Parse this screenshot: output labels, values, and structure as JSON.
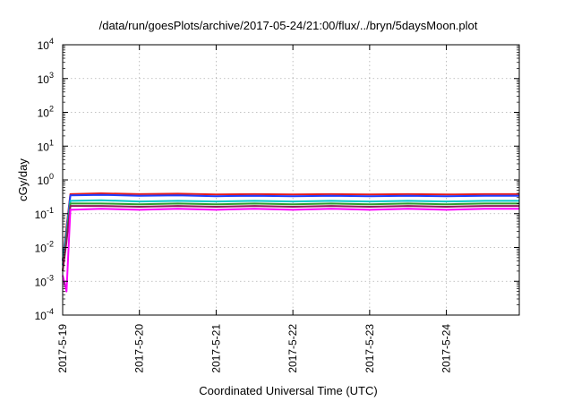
{
  "chart_data": {
    "type": "line",
    "title": "/data/run/goesPlots/archive/2017-05-24/21:00/flux/../bryn/5daysMoon.plot",
    "xlabel": "Coordinated Universal Time (UTC)",
    "ylabel": "cGy/day",
    "yscale": "log",
    "ylim": [
      0.0001,
      10000
    ],
    "xlim": [
      0,
      5.95
    ],
    "x_ticks": [
      {
        "x": 0,
        "label": "2017-5-19"
      },
      {
        "x": 1,
        "label": "2017-5-20"
      },
      {
        "x": 2,
        "label": "2017-5-21"
      },
      {
        "x": 3,
        "label": "2017-5-22"
      },
      {
        "x": 4,
        "label": "2017-5-23"
      },
      {
        "x": 5,
        "label": "2017-5-24"
      }
    ],
    "y_ticks": [
      {
        "value": 0.0001,
        "base": "10",
        "exp": "-4"
      },
      {
        "value": 0.001,
        "base": "10",
        "exp": "-3"
      },
      {
        "value": 0.01,
        "base": "10",
        "exp": "-2"
      },
      {
        "value": 0.1,
        "base": "10",
        "exp": "-1"
      },
      {
        "value": 1,
        "base": "10",
        "exp": "0"
      },
      {
        "value": 10,
        "base": "10",
        "exp": "1"
      },
      {
        "value": 100,
        "base": "10",
        "exp": "2"
      },
      {
        "value": 1000,
        "base": "10",
        "exp": "3"
      },
      {
        "value": 10000,
        "base": "10",
        "exp": "4"
      }
    ],
    "grid": true,
    "series": [
      {
        "color": "#e41a1c",
        "values": [
          [
            0.0,
            0.004
          ],
          [
            0.05,
            0.04
          ],
          [
            0.1,
            0.38
          ],
          [
            0.5,
            0.4
          ],
          [
            1.0,
            0.38
          ],
          [
            1.5,
            0.39
          ],
          [
            2.0,
            0.37
          ],
          [
            2.5,
            0.38
          ],
          [
            3.0,
            0.37
          ],
          [
            3.5,
            0.38
          ],
          [
            4.0,
            0.37
          ],
          [
            4.5,
            0.38
          ],
          [
            5.0,
            0.37
          ],
          [
            5.5,
            0.38
          ],
          [
            5.95,
            0.38
          ]
        ]
      },
      {
        "color": "#1f3fff",
        "values": [
          [
            0.0,
            0.004
          ],
          [
            0.05,
            0.03
          ],
          [
            0.1,
            0.35
          ],
          [
            0.5,
            0.36
          ],
          [
            1.0,
            0.34
          ],
          [
            1.5,
            0.35
          ],
          [
            2.0,
            0.33
          ],
          [
            2.5,
            0.34
          ],
          [
            3.0,
            0.33
          ],
          [
            3.5,
            0.34
          ],
          [
            4.0,
            0.33
          ],
          [
            4.5,
            0.34
          ],
          [
            5.0,
            0.33
          ],
          [
            5.5,
            0.34
          ],
          [
            5.95,
            0.34
          ]
        ]
      },
      {
        "color": "#00c8c8",
        "values": [
          [
            0.0,
            0.003
          ],
          [
            0.05,
            0.025
          ],
          [
            0.1,
            0.24
          ],
          [
            0.5,
            0.25
          ],
          [
            1.0,
            0.23
          ],
          [
            1.5,
            0.24
          ],
          [
            2.0,
            0.23
          ],
          [
            2.5,
            0.24
          ],
          [
            3.0,
            0.23
          ],
          [
            3.5,
            0.24
          ],
          [
            4.0,
            0.23
          ],
          [
            4.5,
            0.24
          ],
          [
            5.0,
            0.23
          ],
          [
            5.5,
            0.24
          ],
          [
            5.95,
            0.24
          ]
        ]
      },
      {
        "color": "#2ca02c",
        "values": [
          [
            0.0,
            0.002
          ],
          [
            0.05,
            0.02
          ],
          [
            0.1,
            0.2
          ],
          [
            0.5,
            0.2
          ],
          [
            1.0,
            0.19
          ],
          [
            1.5,
            0.2
          ],
          [
            2.0,
            0.19
          ],
          [
            2.5,
            0.2
          ],
          [
            3.0,
            0.19
          ],
          [
            3.5,
            0.2
          ],
          [
            4.0,
            0.19
          ],
          [
            4.5,
            0.2
          ],
          [
            5.0,
            0.19
          ],
          [
            5.5,
            0.2
          ],
          [
            5.95,
            0.2
          ]
        ]
      },
      {
        "color": "#8b1a5a",
        "values": [
          [
            0.0,
            0.002
          ],
          [
            0.05,
            0.015
          ],
          [
            0.1,
            0.17
          ],
          [
            0.5,
            0.17
          ],
          [
            1.0,
            0.16
          ],
          [
            1.5,
            0.17
          ],
          [
            2.0,
            0.16
          ],
          [
            2.5,
            0.17
          ],
          [
            3.0,
            0.16
          ],
          [
            3.5,
            0.17
          ],
          [
            4.0,
            0.16
          ],
          [
            4.5,
            0.17
          ],
          [
            5.0,
            0.16
          ],
          [
            5.5,
            0.17
          ],
          [
            5.95,
            0.17
          ]
        ]
      },
      {
        "color": "#ff00ff",
        "values": [
          [
            0.0,
            0.0015
          ],
          [
            0.05,
            0.0005
          ],
          [
            0.1,
            0.13
          ],
          [
            0.5,
            0.14
          ],
          [
            1.0,
            0.13
          ],
          [
            1.5,
            0.14
          ],
          [
            2.0,
            0.13
          ],
          [
            2.5,
            0.14
          ],
          [
            3.0,
            0.13
          ],
          [
            3.5,
            0.14
          ],
          [
            4.0,
            0.13
          ],
          [
            4.5,
            0.14
          ],
          [
            5.0,
            0.13
          ],
          [
            5.5,
            0.14
          ],
          [
            5.95,
            0.14
          ]
        ]
      }
    ]
  }
}
